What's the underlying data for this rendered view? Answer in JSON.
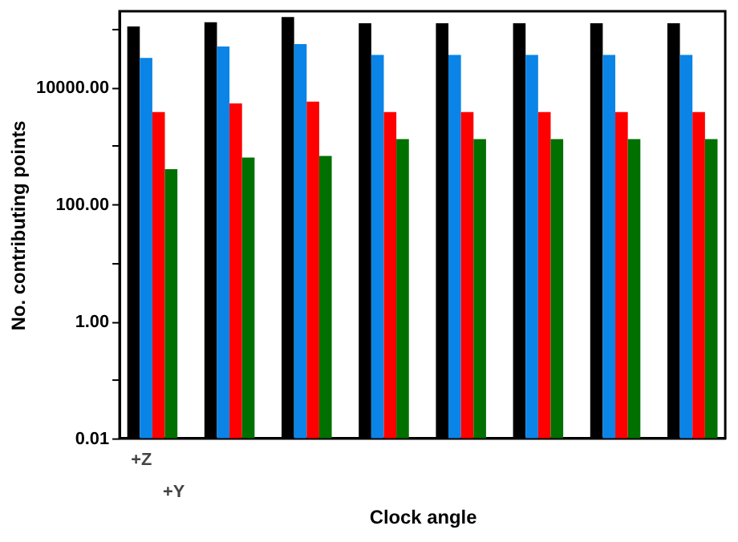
{
  "chart_data": {
    "type": "bar",
    "xlabel": "Clock angle",
    "ylabel": "No. contributing points",
    "categories": [
      null,
      null,
      null,
      null,
      null,
      null,
      null,
      null
    ],
    "series": [
      {
        "color": "#000000",
        "values": [
          110000,
          130000,
          160000,
          125000,
          125000,
          125000,
          125000,
          125000
        ]
      },
      {
        "color": "#0a84e6",
        "values": [
          32000,
          50000,
          55000,
          36000,
          36000,
          36000,
          36000,
          36000
        ]
      },
      {
        "color": "#ff0000",
        "values": [
          3800,
          5300,
          5700,
          3800,
          3800,
          3800,
          3800,
          3800
        ]
      },
      {
        "color": "#007000",
        "values": [
          400,
          630,
          670,
          1300,
          1300,
          1300,
          1300,
          1300
        ]
      }
    ],
    "log": "y",
    "ylim": [
      0.01,
      200000
    ],
    "yticks": [
      0.01,
      {
        "value": 0.1,
        "label": null
      },
      {
        "value": 1,
        "label": "1.00"
      },
      {
        "value": 10,
        "label": null
      },
      {
        "value": 100,
        "label": "100.00"
      },
      {
        "value": 1000,
        "label": null
      },
      {
        "value": 10000,
        "label": "10000.00"
      },
      {
        "value": 100000,
        "label": null
      }
    ],
    "tick_labels": "y",
    "grid": false,
    "legend": false,
    "annotations": [
      "+Z",
      "+Y"
    ]
  }
}
